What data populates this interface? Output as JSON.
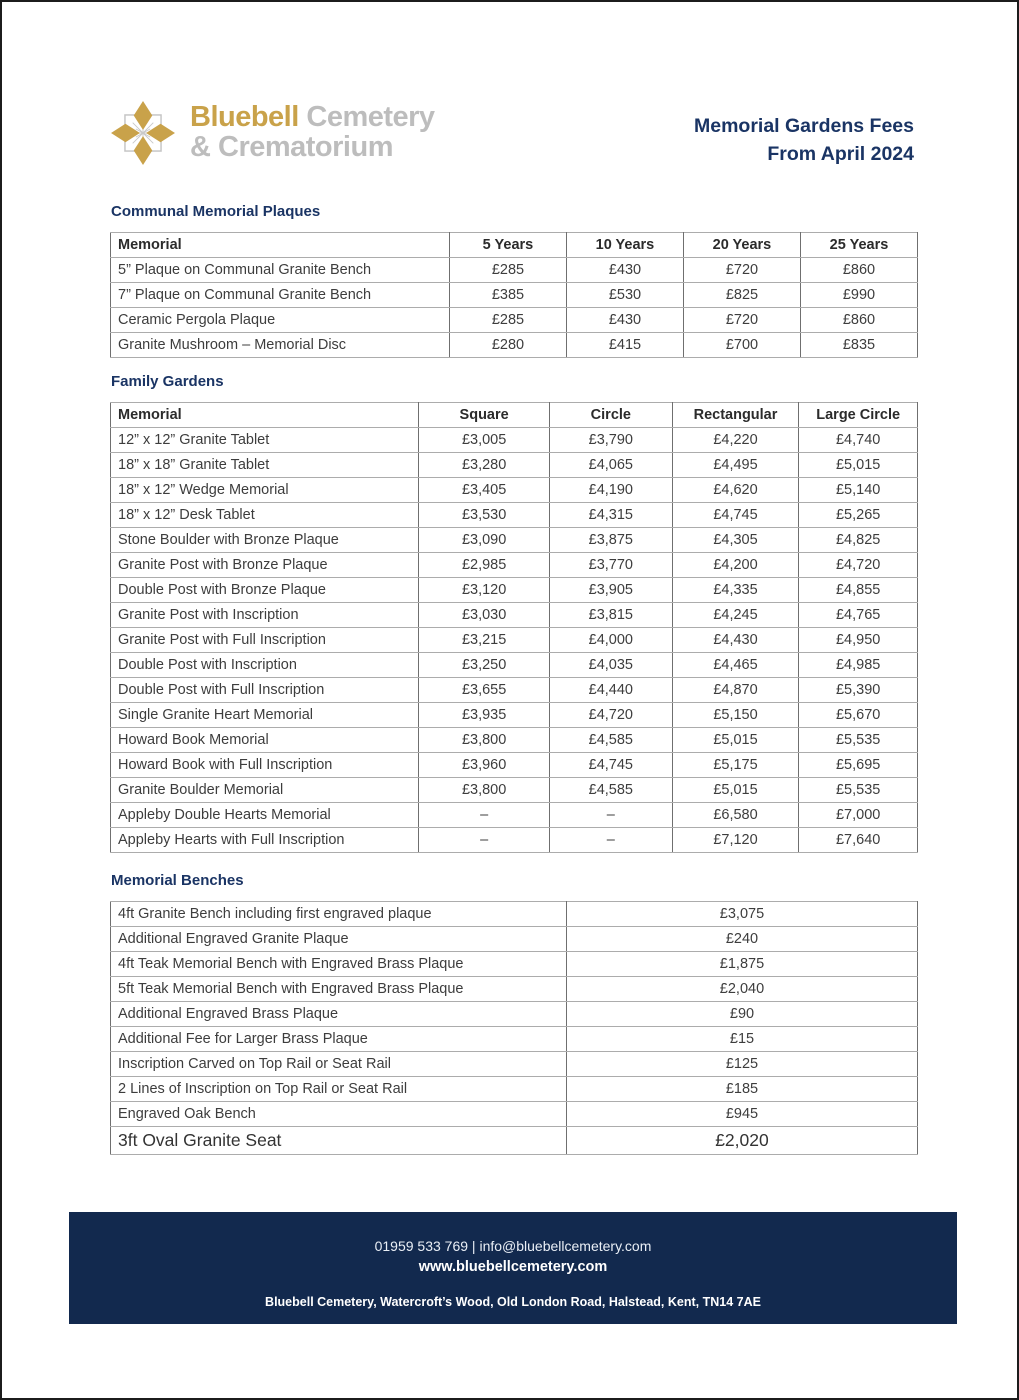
{
  "logo": {
    "word1": "Bluebell",
    "word2": "Cemetery",
    "line2": "& Crematorium",
    "gold": "#C9A24A",
    "gray": "#BDBDBD"
  },
  "title": {
    "line1": "Memorial Gardens Fees",
    "line2": "From April 2024",
    "color": "#1A3464"
  },
  "communal": {
    "heading": "Communal Memorial Plaques",
    "columns": [
      "Memorial",
      "5 Years",
      "10 Years",
      "20 Years",
      "25 Years"
    ],
    "rows": [
      [
        "5” Plaque on Communal Granite Bench",
        "£285",
        "£430",
        "£720",
        "£860"
      ],
      [
        "7” Plaque on Communal Granite Bench",
        "£385",
        "£530",
        "£825",
        "£990"
      ],
      [
        "Ceramic Pergola Plaque",
        "£285",
        "£430",
        "£720",
        "£860"
      ],
      [
        "Granite Mushroom – Memorial Disc",
        "£280",
        "£415",
        "£700",
        "£835"
      ]
    ]
  },
  "family": {
    "heading": "Family Gardens",
    "columns": [
      "Memorial",
      "Square",
      "Circle",
      "Rectangular",
      "Large Circle"
    ],
    "rows": [
      [
        "12” x 12” Granite Tablet",
        "£3,005",
        "£3,790",
        "£4,220",
        "£4,740"
      ],
      [
        "18” x 18” Granite Tablet",
        "£3,280",
        "£4,065",
        "£4,495",
        "£5,015"
      ],
      [
        "18” x 12” Wedge Memorial",
        "£3,405",
        "£4,190",
        "£4,620",
        "£5,140"
      ],
      [
        "18” x 12” Desk Tablet",
        "£3,530",
        "£4,315",
        "£4,745",
        "£5,265"
      ],
      [
        "Stone Boulder with Bronze Plaque",
        "£3,090",
        "£3,875",
        "£4,305",
        "£4,825"
      ],
      [
        "Granite Post with Bronze Plaque",
        "£2,985",
        "£3,770",
        "£4,200",
        "£4,720"
      ],
      [
        "Double Post with Bronze Plaque",
        "£3,120",
        "£3,905",
        "£4,335",
        "£4,855"
      ],
      [
        "Granite Post with Inscription",
        "£3,030",
        "£3,815",
        "£4,245",
        "£4,765"
      ],
      [
        "Granite Post with Full Inscription",
        "£3,215",
        "£4,000",
        "£4,430",
        "£4,950"
      ],
      [
        "Double Post with Inscription",
        "£3,250",
        "£4,035",
        "£4,465",
        "£4,985"
      ],
      [
        "Double Post with Full Inscription",
        "£3,655",
        "£4,440",
        "£4,870",
        "£5,390"
      ],
      [
        "Single Granite Heart Memorial",
        "£3,935",
        "£4,720",
        "£5,150",
        "£5,670"
      ],
      [
        "Howard Book Memorial",
        "£3,800",
        "£4,585",
        "£5,015",
        "£5,535"
      ],
      [
        "Howard Book with Full Inscription",
        "£3,960",
        "£4,745",
        "£5,175",
        "£5,695"
      ],
      [
        "Granite Boulder Memorial",
        "£3,800",
        "£4,585",
        "£5,015",
        "£5,535"
      ],
      [
        "Appleby Double Hearts Memorial",
        "–",
        "–",
        "£6,580",
        "£7,000"
      ],
      [
        "Appleby Hearts with Full Inscription",
        "–",
        "–",
        "£7,120",
        "£7,640"
      ]
    ]
  },
  "benches": {
    "heading": "Memorial Benches",
    "rows": [
      [
        "4ft Granite Bench including first engraved plaque",
        "£3,075"
      ],
      [
        "Additional Engraved Granite Plaque",
        "£240"
      ],
      [
        "4ft Teak Memorial Bench with Engraved Brass Plaque",
        "£1,875"
      ],
      [
        "5ft Teak Memorial Bench with Engraved Brass Plaque",
        "£2,040"
      ],
      [
        "Additional Engraved Brass Plaque",
        "£90"
      ],
      [
        "Additional Fee for Larger Brass Plaque",
        "£15"
      ],
      [
        "Inscription Carved on Top Rail or Seat Rail",
        "£125"
      ],
      [
        "2 Lines of Inscription on Top Rail or Seat Rail",
        "£185"
      ],
      [
        "Engraved Oak Bench",
        "£945"
      ],
      [
        "3ft Oval Granite Seat",
        "£2,020"
      ]
    ]
  },
  "footer": {
    "contact": "01959 533 769 | info@bluebellcemetery.com",
    "website": "www.bluebellcemetery.com",
    "address": "Bluebell Cemetery, Watercroft’s Wood, Old London Road, Halstead, Kent, TN14 7AE",
    "background": "#12294E"
  }
}
